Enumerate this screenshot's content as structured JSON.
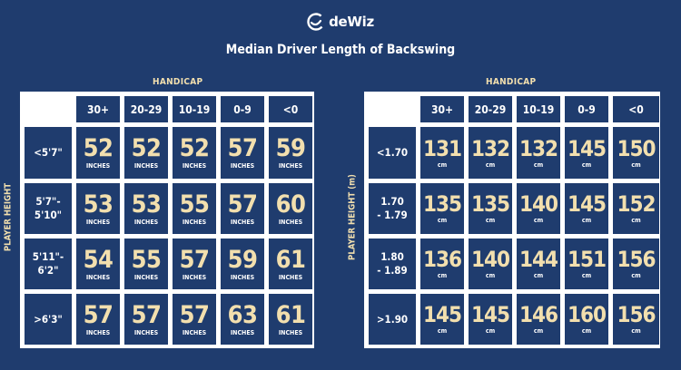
{
  "logo": {
    "text": "deWiz"
  },
  "title": "Median Driver Length of Backswing",
  "colors": {
    "background": "#1f3c6e",
    "value_text": "#f2dfae",
    "grid_lines": "#ffffff",
    "label_text": "#ffffff"
  },
  "chart_data": [
    {
      "type": "table",
      "title": "Median Driver Length of Backswing",
      "column_group_label": "HANDICAP",
      "row_group_label": "PLAYER HEIGHT",
      "columns": [
        "30+",
        "20-29",
        "10-19",
        "0-9",
        "<0"
      ],
      "rows": [
        "<5'7\"",
        "5'7\"-5'10\"",
        "5'11\"-6'2\"",
        ">6'3\""
      ],
      "row_labels_display": [
        [
          "<5'7\""
        ],
        [
          "5'7\"-",
          "5'10\""
        ],
        [
          "5'11\"-",
          "6'2\""
        ],
        [
          ">6'3\""
        ]
      ],
      "unit": "INCHES",
      "values": [
        [
          52,
          52,
          52,
          57,
          59
        ],
        [
          53,
          53,
          55,
          57,
          60
        ],
        [
          54,
          55,
          57,
          59,
          61
        ],
        [
          57,
          57,
          57,
          63,
          61
        ]
      ]
    },
    {
      "type": "table",
      "title": "Median Driver Length of Backswing",
      "column_group_label": "HANDICAP",
      "row_group_label": "PLAYER HEIGHT (m)",
      "columns": [
        "30+",
        "20-29",
        "10-19",
        "0-9",
        "<0"
      ],
      "rows": [
        "<1.70",
        "1.70 - 1.79",
        "1.80 - 1.89",
        ">1.90"
      ],
      "row_labels_display": [
        [
          "<1.70"
        ],
        [
          "1.70",
          "- 1.79"
        ],
        [
          "1.80",
          "- 1.89"
        ],
        [
          ">1.90"
        ]
      ],
      "unit": "cm",
      "values": [
        [
          131,
          132,
          132,
          145,
          150
        ],
        [
          135,
          135,
          140,
          145,
          152
        ],
        [
          136,
          140,
          144,
          151,
          156
        ],
        [
          145,
          145,
          146,
          160,
          156
        ]
      ]
    }
  ]
}
